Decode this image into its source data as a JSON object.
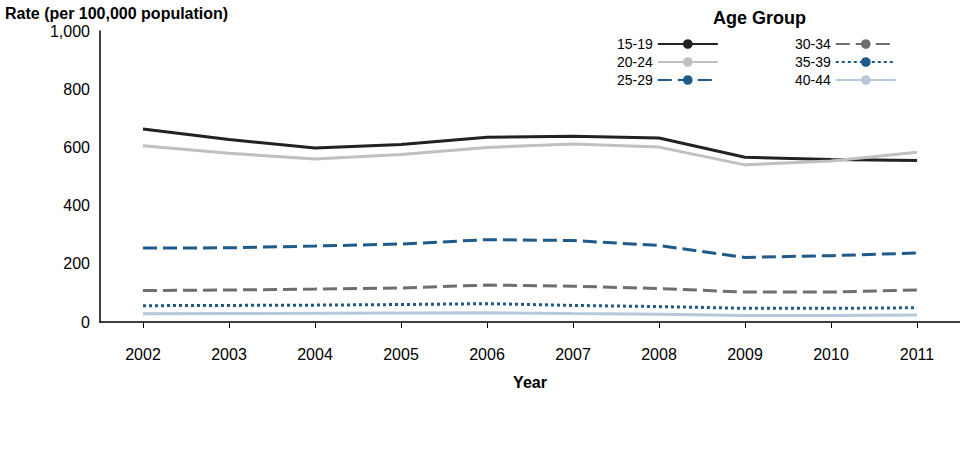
{
  "chart_data": {
    "type": "line",
    "y_label": "Rate (per 100,000 population)",
    "x_label": "Year",
    "legend_title": "Age Group",
    "categories": [
      "2002",
      "2003",
      "2004",
      "2005",
      "2006",
      "2007",
      "2008",
      "2009",
      "2010",
      "2011"
    ],
    "series": [
      {
        "name": "15-19",
        "color": "#222222",
        "line_style": "solid",
        "values": [
          663,
          627,
          598,
          610,
          635,
          638,
          632,
          566,
          558,
          555
        ]
      },
      {
        "name": "20-24",
        "color": "#c0c0c0",
        "line_style": "solid",
        "values": [
          606,
          580,
          560,
          576,
          600,
          612,
          601,
          540,
          553,
          583
        ]
      },
      {
        "name": "25-29",
        "color": "#1f5a8a",
        "line_style": "dashed",
        "values": [
          254,
          255,
          261,
          268,
          283,
          280,
          263,
          222,
          228,
          237
        ]
      },
      {
        "name": "30-34",
        "color": "#6e6e6e",
        "line_style": "dashed",
        "values": [
          108,
          110,
          113,
          117,
          127,
          123,
          115,
          103,
          103,
          110
        ]
      },
      {
        "name": "35-39",
        "color": "#1f5a8a",
        "line_style": "dotted",
        "values": [
          56,
          57,
          58,
          60,
          63,
          57,
          53,
          47,
          47,
          49
        ]
      },
      {
        "name": "40-44",
        "color": "#b8c8dc",
        "line_style": "solid",
        "values": [
          28,
          29,
          30,
          31,
          32,
          29,
          27,
          22,
          22,
          24
        ]
      }
    ],
    "ylim": [
      0,
      1000
    ],
    "yticks": [
      0,
      200,
      400,
      600,
      800,
      {
        "value": 1000,
        "label": "1,000"
      }
    ],
    "grid": false,
    "legend": "top right"
  }
}
